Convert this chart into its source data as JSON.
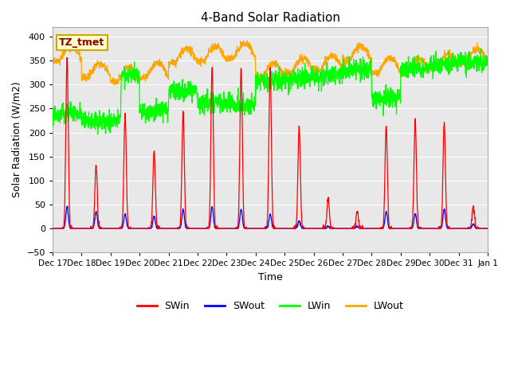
{
  "title": "4-Band Solar Radiation",
  "xlabel": "Time",
  "ylabel": "Solar Radiation (W/m2)",
  "ylim": [
    -50,
    420
  ],
  "yticks": [
    -50,
    0,
    50,
    100,
    150,
    200,
    250,
    300,
    350,
    400
  ],
  "annotation": "TZ_tmet",
  "legend_labels": [
    "SWin",
    "SWout",
    "LWin",
    "LWout"
  ],
  "line_colors": {
    "SWin": "#ff0000",
    "SWout": "#0000ff",
    "LWin": "#00ff00",
    "LWout": "#ffa500"
  },
  "background_color": "#ffffff",
  "plot_bg_color": "#e8e8e8",
  "grid_color": "#ffffff",
  "num_days": 15,
  "seed": 42,
  "figsize": [
    6.4,
    4.8
  ],
  "dpi": 100,
  "SWin_peaks": [
    355,
    130,
    235,
    160,
    245,
    340,
    335,
    335,
    210,
    65,
    35,
    215,
    225,
    220,
    45
  ],
  "SWout_peaks": [
    45,
    35,
    30,
    25,
    40,
    45,
    40,
    30,
    15,
    5,
    5,
    35,
    30,
    40,
    10
  ],
  "LWin_day_base": [
    235,
    225,
    320,
    245,
    285,
    260,
    260,
    305,
    310,
    315,
    330,
    270,
    330,
    340,
    345
  ],
  "LWout_day_base": [
    375,
    340,
    330,
    340,
    370,
    375,
    380,
    340,
    350,
    355,
    375,
    350,
    350,
    360,
    370
  ]
}
